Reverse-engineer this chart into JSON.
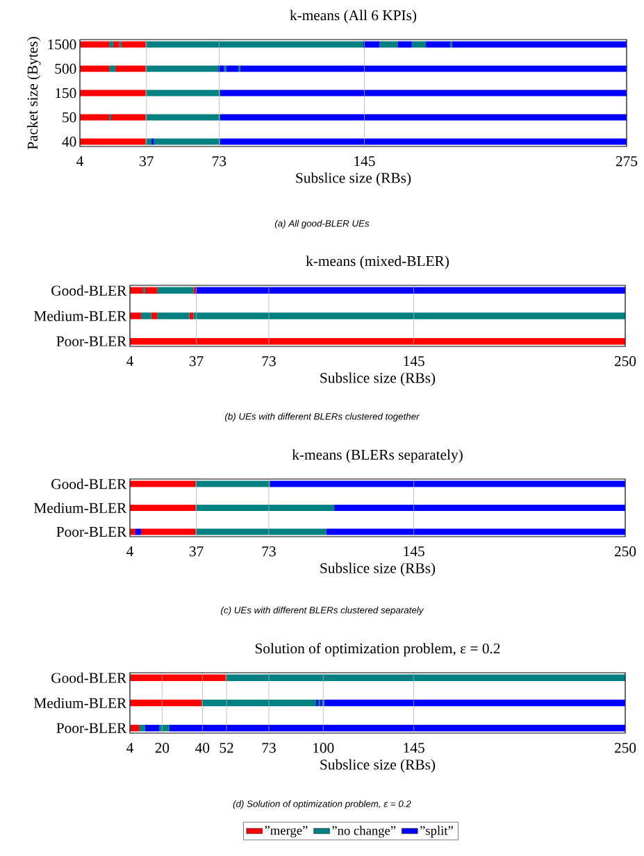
{
  "chart_data": [
    {
      "type": "bar",
      "orientation": "horizontal",
      "title": "k-means (All 6 KPIs)",
      "xlabel": "Subslice size (RBs)",
      "ylabel": "Packet size (Bytes)",
      "annotations": [
        "(a) All good-BLER UEs"
      ],
      "categories": [
        "1500",
        "500",
        "150",
        "50",
        "40"
      ],
      "xlim": [
        4,
        275
      ],
      "xticks": [
        4,
        37,
        73,
        145,
        275
      ],
      "grid": "x",
      "series": [
        {
          "color": "#ff0000",
          "base": [
            4,
            4,
            4,
            4,
            4
          ],
          "values": [
            14.5,
            14.5,
            32.5,
            14.5,
            32.5
          ]
        },
        {
          "color": "#ff0000",
          "base": [
            20.5,
            21.5,
            null,
            19.5,
            null
          ],
          "values": [
            3,
            15,
            null,
            17,
            null
          ]
        },
        {
          "color": "#ff0000",
          "base": [
            24.5,
            null,
            null,
            null,
            null
          ],
          "values": [
            12,
            null,
            null,
            null,
            null
          ]
        },
        {
          "color": "#008080",
          "base": [
            18.5,
            18.5,
            36.5,
            18.5,
            36.5
          ],
          "values": [
            2,
            3,
            37,
            1,
            3
          ]
        },
        {
          "color": "#008080",
          "base": [
            23.5,
            36.5,
            null,
            36.5,
            40.5
          ],
          "values": [
            1,
            36,
            null,
            37,
            33
          ]
        },
        {
          "color": "#008080",
          "base": [
            36.5,
            75.5,
            null,
            null,
            null
          ],
          "values": [
            108,
            1,
            null,
            null,
            null
          ]
        },
        {
          "color": "#008080",
          "base": [
            152.5,
            82.5,
            null,
            null,
            null
          ],
          "values": [
            9,
            1,
            null,
            null,
            null
          ]
        },
        {
          "color": "#008080",
          "base": [
            168.5,
            null,
            null,
            null,
            null
          ],
          "values": [
            7,
            null,
            null,
            null,
            null
          ]
        },
        {
          "color": "#008080",
          "base": [
            187.5,
            null,
            null,
            null,
            null
          ],
          "values": [
            1,
            null,
            null,
            null,
            null
          ]
        },
        {
          "color": "#0000ff",
          "base": [
            144.5,
            72.5,
            73.5,
            73.5,
            39.5
          ],
          "values": [
            8,
            3,
            201.5,
            201.5,
            1
          ]
        },
        {
          "color": "#0000ff",
          "base": [
            161.5,
            76.5,
            null,
            null,
            73.5
          ],
          "values": [
            7,
            6,
            null,
            null,
            201.5
          ]
        },
        {
          "color": "#0000ff",
          "base": [
            175.5,
            83.5,
            null,
            null,
            null
          ],
          "values": [
            12,
            191.5,
            null,
            null,
            null
          ]
        },
        {
          "color": "#0000ff",
          "base": [
            188.5,
            null,
            null,
            null,
            null
          ],
          "values": [
            86.5,
            null,
            null,
            null,
            null
          ]
        }
      ]
    },
    {
      "type": "bar",
      "orientation": "horizontal",
      "title": "k-means (mixed-BLER)",
      "xlabel": "Subslice size (RBs)",
      "annotations": [
        "(b) UEs with different BLERs clustered together"
      ],
      "categories": [
        "Good-BLER",
        "Medium-BLER",
        "Poor-BLER"
      ],
      "xlim": [
        4,
        250
      ],
      "xticks": [
        4,
        37,
        73,
        145,
        250
      ],
      "grid": "x",
      "series": [
        {
          "color": "#ff0000",
          "base": [
            4,
            4,
            4
          ],
          "values": [
            6.5,
            5.5,
            246
          ]
        },
        {
          "color": "#ff0000",
          "base": [
            11.5,
            14.5,
            null
          ],
          "values": [
            6,
            3,
            null
          ]
        },
        {
          "color": "#ff0000",
          "base": [
            35.5,
            33.5,
            null
          ],
          "values": [
            1,
            2,
            null
          ]
        },
        {
          "color": "#008080",
          "base": [
            10.5,
            9.5,
            null
          ],
          "values": [
            1,
            5,
            null
          ]
        },
        {
          "color": "#008080",
          "base": [
            17.5,
            17.5,
            null
          ],
          "values": [
            18,
            16,
            null
          ]
        },
        {
          "color": "#008080",
          "base": [
            null,
            35.5,
            null
          ],
          "values": [
            null,
            214.5,
            null
          ]
        },
        {
          "color": "#0000ff",
          "base": [
            36.5,
            null,
            null
          ],
          "values": [
            213.5,
            null,
            null
          ]
        }
      ]
    },
    {
      "type": "bar",
      "orientation": "horizontal",
      "title": "k-means (BLERs separately)",
      "xlabel": "Subslice size (RBs)",
      "annotations": [
        "(c) UEs with different BLERs clustered separately"
      ],
      "categories": [
        "Good-BLER",
        "Medium-BLER",
        "Poor-BLER"
      ],
      "xlim": [
        4,
        250
      ],
      "xticks": [
        4,
        37,
        73,
        145,
        250
      ],
      "grid": "x",
      "series": [
        {
          "color": "#ff0000",
          "base": [
            4,
            4,
            4
          ],
          "values": [
            32.5,
            32.5,
            2.5
          ]
        },
        {
          "color": "#ff0000",
          "base": [
            null,
            null,
            9.5
          ],
          "values": [
            null,
            null,
            27
          ]
        },
        {
          "color": "#008080",
          "base": [
            36.5,
            36.5,
            36.5
          ],
          "values": [
            37,
            69,
            65
          ]
        },
        {
          "color": "#0000ff",
          "base": [
            73.5,
            105.5,
            6.5
          ],
          "values": [
            176.5,
            144.5,
            3
          ]
        },
        {
          "color": "#0000ff",
          "base": [
            null,
            null,
            101.5
          ],
          "values": [
            null,
            null,
            148.5
          ]
        }
      ]
    },
    {
      "type": "bar",
      "orientation": "horizontal",
      "title": "Solution of optimization problem, ε = 0.2",
      "xlabel": "Subslice size (RBs)",
      "annotations": [
        "(d) Solution of optimization problem, ε = 0.2"
      ],
      "categories": [
        "Good-BLER",
        "Medium-BLER",
        "Poor-BLER"
      ],
      "xlim": [
        4,
        250
      ],
      "xticks": [
        4,
        20,
        40,
        52,
        73,
        100,
        145,
        250
      ],
      "grid": "x",
      "legend": "bottom",
      "series": [
        {
          "name": "”merge”",
          "color": "#ff0000",
          "base": [
            4,
            4,
            4
          ],
          "values": [
            47.5,
            35.5,
            4.5
          ]
        },
        {
          "name": "”no change”",
          "color": "#008080",
          "base": [
            51.5,
            39.5,
            8.5
          ],
          "values": [
            198.5,
            57,
            3
          ]
        },
        {
          "name": "”split”",
          "color": "#0000ff",
          "base": [
            null,
            96.5,
            11.5
          ],
          "values": [
            null,
            1,
            7
          ]
        },
        {
          "color": "#008080",
          "base": [
            null,
            97.5,
            18.5
          ],
          "values": [
            null,
            1,
            5
          ]
        },
        {
          "color": "#008080",
          "base": [
            null,
            99.5,
            null
          ],
          "values": [
            null,
            1,
            null
          ]
        },
        {
          "color": "#0000ff",
          "base": [
            null,
            98.5,
            23.5
          ],
          "values": [
            null,
            1,
            226.5
          ]
        },
        {
          "color": "#0000ff",
          "base": [
            null,
            100.5,
            null
          ],
          "values": [
            null,
            149.5,
            null
          ]
        }
      ]
    }
  ]
}
